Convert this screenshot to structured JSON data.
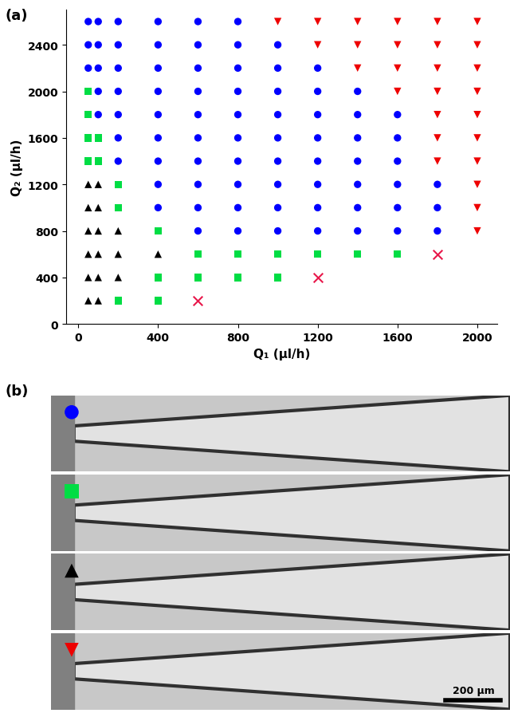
{
  "chart_data": {
    "type": "scatter",
    "title": "(a)",
    "x_label": "Q₁ (μl/h)",
    "y_label": "Q₂ (μl/h)",
    "xlim": [
      -60,
      2100
    ],
    "xticks": [
      0,
      400,
      800,
      1200,
      1600,
      2000
    ],
    "ylim": [
      0,
      2700
    ],
    "yticks": [
      0,
      400,
      800,
      1200,
      1600,
      2000,
      2400
    ],
    "grid": false,
    "series": [
      {
        "color": "#0000ff",
        "marker": "circle",
        "x": [
          50,
          50,
          50,
          100,
          100,
          100,
          100,
          100,
          200,
          200,
          200,
          200,
          200,
          200,
          200,
          400,
          400,
          400,
          400,
          400,
          400,
          400,
          400,
          400,
          600,
          600,
          600,
          600,
          600,
          600,
          600,
          600,
          600,
          600,
          800,
          800,
          800,
          800,
          800,
          800,
          800,
          800,
          800,
          800,
          1000,
          1000,
          1000,
          1000,
          1000,
          1000,
          1000,
          1000,
          1000,
          1200,
          1200,
          1200,
          1200,
          1200,
          1200,
          1200,
          1200,
          1400,
          1400,
          1400,
          1400,
          1400,
          1400,
          1400,
          1600,
          1600,
          1600,
          1600,
          1600,
          1600,
          1800,
          1800,
          1800
        ],
        "values": [
          2200,
          2400,
          2600,
          1800,
          2000,
          2200,
          2400,
          2600,
          1400,
          1600,
          1800,
          2000,
          2200,
          2400,
          2600,
          1000,
          1200,
          1400,
          1600,
          1800,
          2000,
          2200,
          2400,
          2600,
          800,
          1000,
          1200,
          1400,
          1600,
          1800,
          2000,
          2200,
          2400,
          2600,
          800,
          1000,
          1200,
          1400,
          1600,
          1800,
          2000,
          2200,
          2400,
          2600,
          800,
          1000,
          1200,
          1400,
          1600,
          1800,
          2000,
          2200,
          2400,
          800,
          1000,
          1200,
          1400,
          1600,
          1800,
          2000,
          2200,
          800,
          1000,
          1200,
          1400,
          1600,
          1800,
          2000,
          800,
          1000,
          1200,
          1400,
          1600,
          1800,
          800,
          1000,
          1200
        ]
      },
      {
        "color": "#00dd44",
        "marker": "square",
        "x": [
          50,
          50,
          50,
          50,
          100,
          100,
          200,
          200,
          200,
          400,
          400,
          400,
          600,
          600,
          800,
          800,
          1000,
          1000,
          1200,
          1400,
          1600
        ],
        "values": [
          1400,
          1600,
          1800,
          2000,
          1400,
          1600,
          200,
          1000,
          1200,
          200,
          400,
          800,
          400,
          600,
          400,
          600,
          400,
          600,
          600,
          600,
          600
        ]
      },
      {
        "color": "#000000",
        "marker": "triangle_up",
        "x": [
          50,
          50,
          50,
          50,
          50,
          50,
          100,
          100,
          100,
          100,
          100,
          100,
          200,
          200,
          200,
          400
        ],
        "values": [
          200,
          400,
          600,
          800,
          1000,
          1200,
          200,
          400,
          600,
          800,
          1000,
          1200,
          400,
          600,
          800,
          600
        ]
      },
      {
        "color": "#ee0000",
        "marker": "triangle_down",
        "x": [
          1000,
          1200,
          1200,
          1400,
          1400,
          1400,
          1600,
          1600,
          1600,
          1600,
          1800,
          1800,
          1800,
          1800,
          1800,
          1800,
          1800,
          2000,
          2000,
          2000,
          2000,
          2000,
          2000,
          2000,
          2000,
          2000,
          2000
        ],
        "values": [
          2600,
          2400,
          2600,
          2200,
          2400,
          2600,
          2000,
          2200,
          2400,
          2600,
          1400,
          1600,
          1800,
          2000,
          2200,
          2400,
          2600,
          800,
          1000,
          1200,
          1400,
          1600,
          1800,
          2000,
          2200,
          2400,
          2600
        ]
      },
      {
        "color": "#e8174a",
        "marker": "x",
        "x": [
          600,
          1200,
          1800
        ],
        "values": [
          200,
          400,
          600
        ]
      }
    ]
  },
  "panel_b": {
    "label": "(b)",
    "scale_bar": "200 μm",
    "images": [
      {
        "color": "#0000ff",
        "marker": "circle"
      },
      {
        "color": "#00dd44",
        "marker": "square"
      },
      {
        "color": "#000000",
        "marker": "triangle_up"
      },
      {
        "color": "#ee0000",
        "marker": "triangle_down"
      }
    ]
  }
}
